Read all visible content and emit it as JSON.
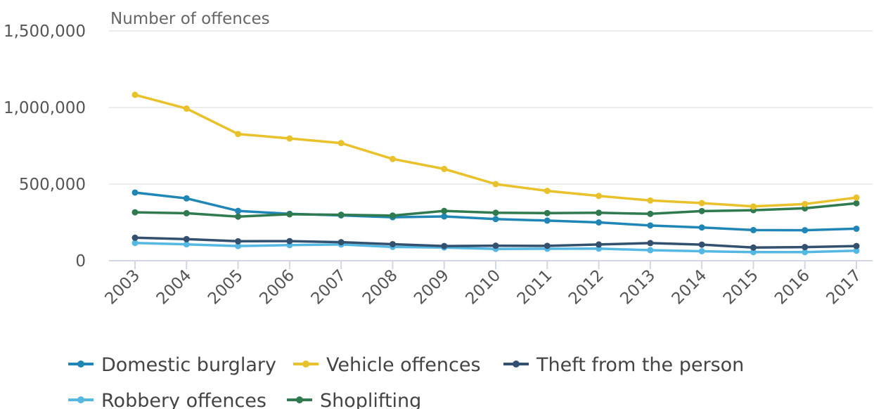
{
  "chart_data": {
    "type": "line",
    "ylabel": "Number of offences",
    "xlabel": "",
    "ylim": [
      0,
      1500000
    ],
    "yticks": [
      0,
      500000,
      1000000,
      1500000
    ],
    "ytick_labels": [
      "0",
      "500,000",
      "1,000,000",
      "1,500,000"
    ],
    "grid": true,
    "legend_position": "bottom",
    "x": [
      "2003",
      "2004",
      "2005",
      "2006",
      "2007",
      "2008",
      "2009",
      "2010",
      "2011",
      "2012",
      "2013",
      "2014",
      "2015",
      "2016",
      "2017"
    ],
    "series": [
      {
        "name": "Domestic burglary",
        "color": "#1f86b5",
        "values": [
          445000,
          407000,
          325000,
          306000,
          296000,
          284000,
          289000,
          272000,
          262000,
          250000,
          230000,
          217000,
          200000,
          199000,
          209000
        ]
      },
      {
        "name": "Vehicle offences",
        "color": "#e9c12b",
        "values": [
          1083000,
          993000,
          827000,
          798000,
          768000,
          664000,
          599000,
          500000,
          456000,
          423000,
          393000,
          376000,
          354000,
          370000,
          412000
        ]
      },
      {
        "name": "Theft from the person",
        "color": "#34506f",
        "values": [
          150000,
          141000,
          127000,
          128000,
          121000,
          108000,
          96000,
          98000,
          97000,
          106000,
          115000,
          105000,
          86000,
          89000,
          96000
        ]
      },
      {
        "name": "Robbery offences",
        "color": "#55b8e3",
        "values": [
          116000,
          107000,
          96000,
          102000,
          106000,
          90000,
          86000,
          77000,
          78000,
          79000,
          69000,
          62000,
          56000,
          56000,
          65000
        ]
      },
      {
        "name": "Shoplifting",
        "color": "#2f7a4f",
        "values": [
          316000,
          310000,
          288000,
          303000,
          300000,
          295000,
          325000,
          313000,
          311000,
          313000,
          306000,
          324000,
          330000,
          342000,
          375000
        ]
      }
    ]
  }
}
